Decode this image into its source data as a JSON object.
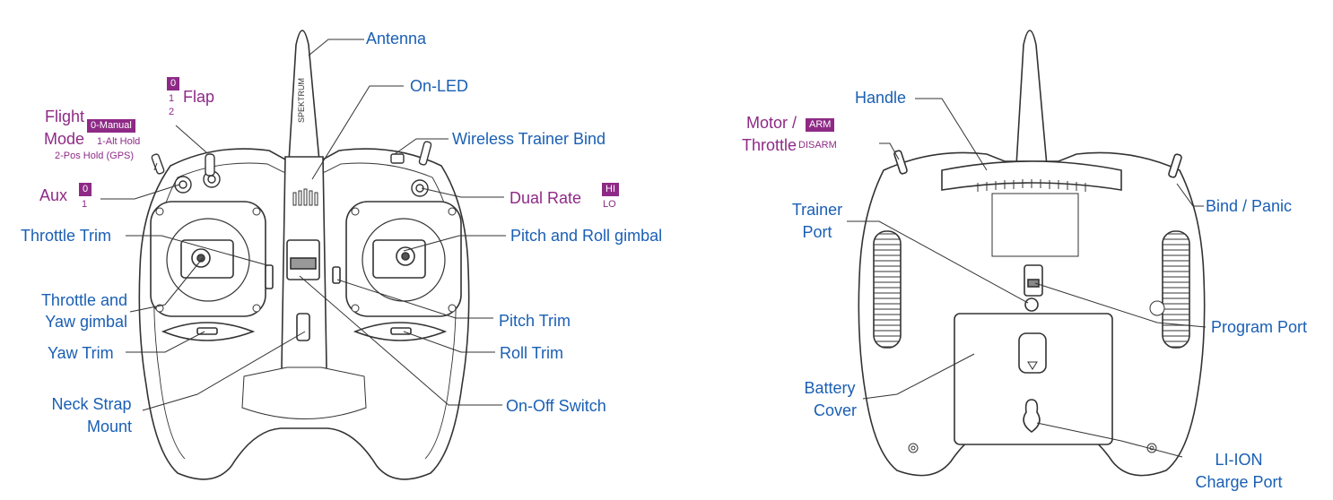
{
  "front": {
    "antenna": "Antenna",
    "on_led": "On-LED",
    "flap": "Flap",
    "flap_positions": [
      "0",
      "1",
      "2"
    ],
    "flight_mode_line1": "Flight",
    "flight_mode_line2": "Mode",
    "flight_modes": [
      "0-Manual",
      "1-Alt Hold",
      "2-Pos Hold (GPS)"
    ],
    "wireless_trainer_bind": "Wireless Trainer Bind",
    "aux": "Aux",
    "aux_positions": [
      "0",
      "1"
    ],
    "dual_rate": "Dual Rate",
    "dual_rate_positions": [
      "HI",
      "LO"
    ],
    "throttle_trim": "Throttle Trim",
    "pitch_roll_gimbal": "Pitch and Roll gimbal",
    "throttle_yaw_gimbal_line1": "Throttle and",
    "throttle_yaw_gimbal_line2": "Yaw gimbal",
    "pitch_trim": "Pitch Trim",
    "yaw_trim": "Yaw Trim",
    "roll_trim": "Roll Trim",
    "neck_strap_line1": "Neck Strap",
    "neck_strap_line2": "Mount",
    "on_off_switch": "On-Off Switch",
    "brand_text": "SPEKTRUM"
  },
  "back": {
    "handle": "Handle",
    "motor_throttle_line1": "Motor /",
    "motor_throttle_line2": "Throttle",
    "motor_positions": [
      "ARM",
      "DISARM"
    ],
    "trainer_port_line1": "Trainer",
    "trainer_port_line2": "Port",
    "bind_panic": "Bind / Panic",
    "program_port": "Program Port",
    "battery_cover_line1": "Battery",
    "battery_cover_line2": "Cover",
    "charge_port_line1": "LI-ION",
    "charge_port_line2": "Charge Port"
  },
  "colors": {
    "label_blue": "#1a5fb4",
    "switch_purple": "#8e2a86",
    "outline": "#333333"
  }
}
